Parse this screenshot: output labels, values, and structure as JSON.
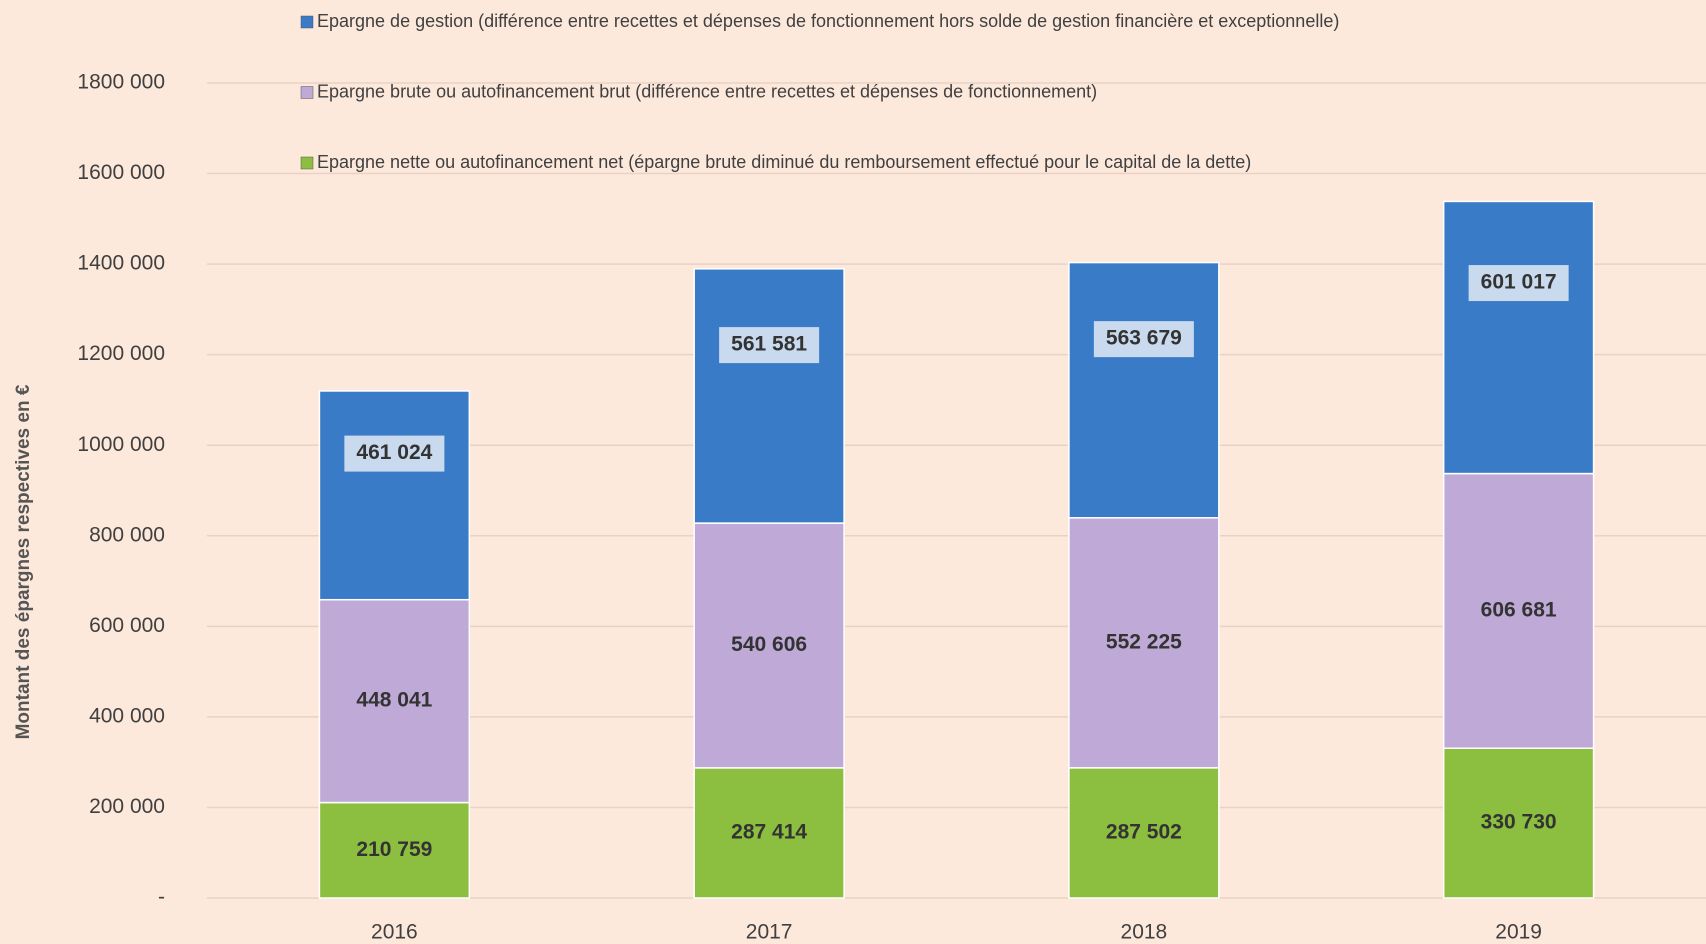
{
  "chart_data": {
    "type": "stacked_bar",
    "y_label": "Montant des épargnes respectives en €",
    "categories": [
      "2016",
      "2017",
      "2018",
      "2019"
    ],
    "series": [
      {
        "name": "Epargne nette ou autofinancement net (épargne brute diminué du remboursement effectué pour le capital de la dette)",
        "color": "#8cbf3f",
        "values": [
          210759,
          287414,
          287502,
          330730
        ],
        "value_labels": [
          "210 759",
          "287 414",
          "287 502",
          "330 730"
        ]
      },
      {
        "name": "Epargne brute ou autofinancement brut (différence entre recettes et dépenses de fonctionnement)",
        "color": "#bfa9d6",
        "values": [
          448041,
          540606,
          552225,
          606681
        ],
        "value_labels": [
          "448 041",
          "540 606",
          "552 225",
          "606 681"
        ]
      },
      {
        "name": "Epargne de gestion (différence entre recettes et dépenses de fonctionnement hors solde de gestion financière et exceptionnelle)",
        "color": "#3a7bc8",
        "values": [
          461024,
          561581,
          563679,
          601017
        ],
        "value_labels": [
          "461 024",
          "561 581",
          "563 679",
          "601 017"
        ]
      }
    ],
    "ylim": [
      0,
      1800000
    ],
    "yticks": [
      {
        "value": 0,
        "label": "-"
      },
      {
        "value": 200000,
        "label": "200 000"
      },
      {
        "value": 400000,
        "label": "400 000"
      },
      {
        "value": 600000,
        "label": "600 000"
      },
      {
        "value": 800000,
        "label": "800 000"
      },
      {
        "value": 1000000,
        "label": "1000 000"
      },
      {
        "value": 1200000,
        "label": "1200 000"
      },
      {
        "value": 1400000,
        "label": "1400 000"
      },
      {
        "value": 1600000,
        "label": "1600 000"
      },
      {
        "value": 1800000,
        "label": "1800 000"
      }
    ],
    "grid": true
  }
}
